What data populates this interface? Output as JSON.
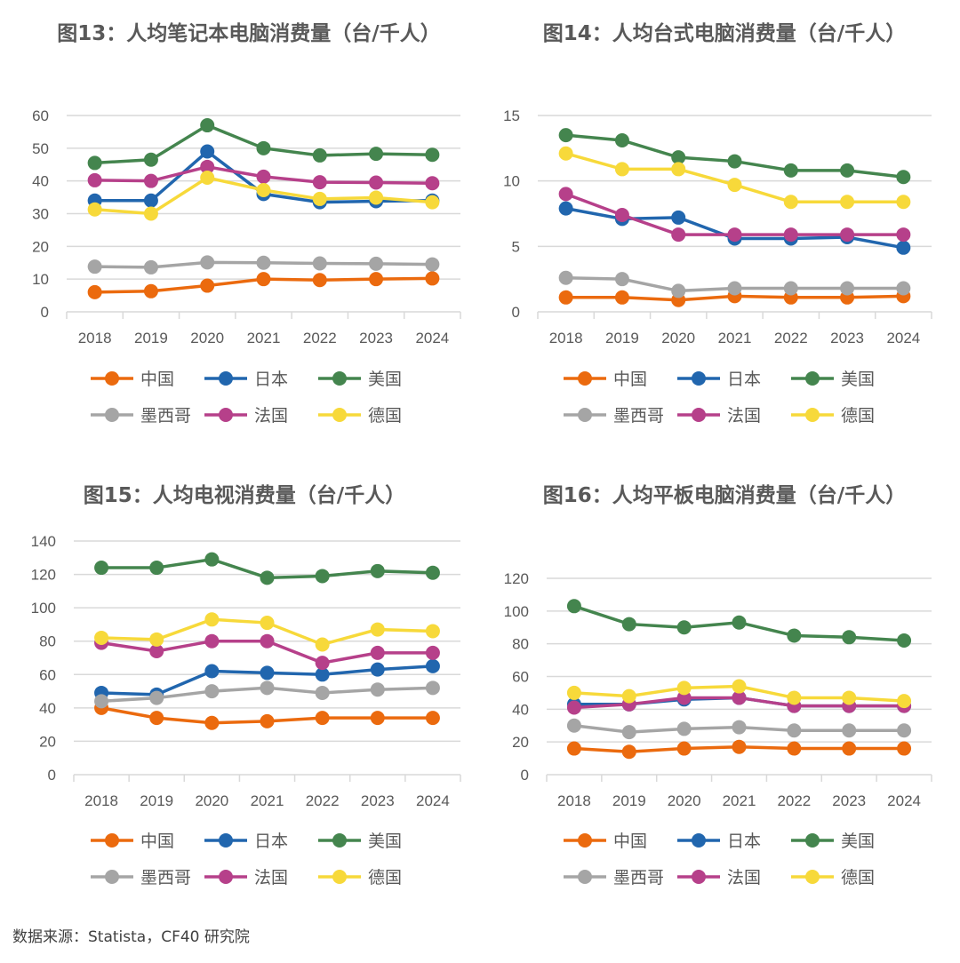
{
  "chart_data": [
    {
      "type": "line",
      "title": "图13：人均笔记本电脑消费量（台/千人）",
      "categories": [
        "2018",
        "2019",
        "2020",
        "2021",
        "2022",
        "2023",
        "2024"
      ],
      "ylim": [
        0,
        60
      ],
      "yticks": [
        "0",
        "10",
        "20",
        "30",
        "40",
        "50",
        "60"
      ],
      "grid": true,
      "legend_position": "bottom",
      "series": [
        {
          "name": "中国",
          "color": "#EB6A0E",
          "values": [
            6.0,
            6.3,
            8.0,
            10.0,
            9.7,
            10.0,
            10.2
          ]
        },
        {
          "name": "日本",
          "color": "#2166AE",
          "values": [
            34.0,
            34.0,
            49.0,
            36.0,
            33.5,
            33.8,
            34.0
          ]
        },
        {
          "name": "美国",
          "color": "#44854E",
          "values": [
            45.5,
            46.5,
            57.0,
            50.0,
            47.8,
            48.3,
            48.0
          ]
        },
        {
          "name": "墨西哥",
          "color": "#A5A5A5",
          "values": [
            13.8,
            13.6,
            15.1,
            15.0,
            14.8,
            14.7,
            14.5
          ]
        },
        {
          "name": "法国",
          "color": "#B6408A",
          "values": [
            40.2,
            40.0,
            44.3,
            41.3,
            39.6,
            39.5,
            39.3
          ]
        },
        {
          "name": "德国",
          "color": "#F7D93A",
          "values": [
            31.3,
            30.0,
            41.0,
            37.2,
            34.5,
            34.9,
            33.5
          ]
        }
      ]
    },
    {
      "type": "line",
      "title": "图14：人均台式电脑消费量（台/千人）",
      "categories": [
        "2018",
        "2019",
        "2020",
        "2021",
        "2022",
        "2023",
        "2024"
      ],
      "ylim": [
        0,
        15
      ],
      "yticks": [
        "0",
        "5",
        "10",
        "15"
      ],
      "grid": true,
      "legend_position": "bottom",
      "series": [
        {
          "name": "中国",
          "color": "#EB6A0E",
          "values": [
            1.1,
            1.1,
            0.9,
            1.2,
            1.1,
            1.1,
            1.2
          ]
        },
        {
          "name": "日本",
          "color": "#2166AE",
          "values": [
            7.9,
            7.1,
            7.2,
            5.6,
            5.6,
            5.7,
            4.9
          ]
        },
        {
          "name": "美国",
          "color": "#44854E",
          "values": [
            13.5,
            13.1,
            11.8,
            11.5,
            10.8,
            10.8,
            10.3
          ]
        },
        {
          "name": "墨西哥",
          "color": "#A5A5A5",
          "values": [
            2.6,
            2.5,
            1.6,
            1.8,
            1.8,
            1.8,
            1.8
          ]
        },
        {
          "name": "法国",
          "color": "#B6408A",
          "values": [
            9.0,
            7.4,
            5.9,
            5.9,
            5.9,
            5.9,
            5.9
          ]
        },
        {
          "name": "德国",
          "color": "#F7D93A",
          "values": [
            12.1,
            10.9,
            10.9,
            9.7,
            8.4,
            8.4,
            8.4
          ]
        }
      ]
    },
    {
      "type": "line",
      "title": "图15：人均电视消费量（台/千人）",
      "categories": [
        "2018",
        "2019",
        "2020",
        "2021",
        "2022",
        "2023",
        "2024"
      ],
      "ylim": [
        0,
        140
      ],
      "yticks": [
        "0",
        "20",
        "40",
        "60",
        "80",
        "100",
        "120",
        "140"
      ],
      "grid": true,
      "legend_position": "bottom",
      "series": [
        {
          "name": "中国",
          "color": "#EB6A0E",
          "values": [
            40,
            34,
            31,
            32,
            34,
            34,
            34
          ]
        },
        {
          "name": "日本",
          "color": "#2166AE",
          "values": [
            49,
            48,
            62,
            61,
            60,
            63,
            65
          ]
        },
        {
          "name": "美国",
          "color": "#44854E",
          "values": [
            124,
            124,
            129,
            118,
            119,
            122,
            121
          ]
        },
        {
          "name": "墨西哥",
          "color": "#A5A5A5",
          "values": [
            44,
            46,
            50,
            52,
            49,
            51,
            52
          ]
        },
        {
          "name": "法国",
          "color": "#B6408A",
          "values": [
            79,
            74,
            80,
            80,
            67,
            73,
            73
          ]
        },
        {
          "name": "德国",
          "color": "#F7D93A",
          "values": [
            82,
            81,
            93,
            91,
            78,
            87,
            86
          ]
        }
      ]
    },
    {
      "type": "line",
      "title": "图16：人均平板电脑消费量（台/千人）",
      "categories": [
        "2018",
        "2019",
        "2020",
        "2021",
        "2022",
        "2023",
        "2024"
      ],
      "ylim": [
        0,
        120
      ],
      "yticks": [
        "0",
        "20",
        "40",
        "60",
        "80",
        "100",
        "120"
      ],
      "grid": true,
      "legend_position": "bottom",
      "series": [
        {
          "name": "中国",
          "color": "#EB6A0E",
          "values": [
            16,
            14,
            16,
            17,
            16,
            16,
            16
          ]
        },
        {
          "name": "日本",
          "color": "#2166AE",
          "values": [
            43,
            43,
            46,
            47,
            42,
            42,
            42
          ]
        },
        {
          "name": "美国",
          "color": "#44854E",
          "values": [
            103,
            92,
            90,
            93,
            85,
            84,
            82
          ]
        },
        {
          "name": "墨西哥",
          "color": "#A5A5A5",
          "values": [
            30,
            26,
            28,
            29,
            27,
            27,
            27
          ]
        },
        {
          "name": "法国",
          "color": "#B6408A",
          "values": [
            41,
            43,
            47,
            47,
            42,
            42,
            42
          ]
        },
        {
          "name": "德国",
          "color": "#F7D93A",
          "values": [
            50,
            48,
            53,
            54,
            47,
            47,
            45
          ]
        }
      ]
    }
  ],
  "source": "数据来源：Statista，CF40 研究院"
}
